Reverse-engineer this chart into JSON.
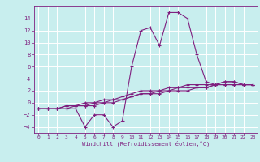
{
  "xlabel": "Windchill (Refroidissement éolien,°C)",
  "x": [
    0,
    1,
    2,
    3,
    4,
    5,
    6,
    7,
    8,
    9,
    10,
    11,
    12,
    13,
    14,
    15,
    16,
    17,
    18,
    19,
    20,
    21,
    22,
    23
  ],
  "line1": [
    -1,
    -1,
    -1,
    -1,
    -1,
    -4,
    -2,
    -2,
    -4,
    -3,
    6,
    12,
    12.5,
    9.5,
    15,
    15,
    14,
    8,
    3.5,
    3,
    3.5,
    3.5,
    3,
    3
  ],
  "line2": [
    -1,
    -1,
    -1,
    -1,
    -0.5,
    -0.5,
    -0.5,
    0,
    0,
    0.5,
    1,
    1.5,
    1.5,
    1.5,
    2,
    2,
    2,
    2.5,
    2.5,
    3,
    3,
    3,
    3,
    3
  ],
  "line3": [
    -1,
    -1,
    -1,
    -0.5,
    -0.5,
    -0.5,
    0,
    0,
    0.5,
    0.5,
    1,
    1.5,
    1.5,
    2,
    2,
    2.5,
    2.5,
    2.5,
    2.5,
    3,
    3,
    3,
    3,
    3
  ],
  "line4": [
    -1,
    -1,
    -1,
    -0.5,
    -0.5,
    0,
    0,
    0.5,
    0.5,
    1,
    1.5,
    2,
    2,
    2,
    2.5,
    2.5,
    3,
    3,
    3,
    3,
    3.5,
    3.5,
    3,
    3
  ],
  "line_color": "#7f1f7f",
  "bg_color": "#c8eeee",
  "grid_color": "#ffffff",
  "ylim": [
    -5,
    16
  ],
  "yticks": [
    -4,
    -2,
    0,
    2,
    4,
    6,
    8,
    10,
    12,
    14
  ],
  "xlim": [
    -0.5,
    23.5
  ],
  "xticks": [
    0,
    1,
    2,
    3,
    4,
    5,
    6,
    7,
    8,
    9,
    10,
    11,
    12,
    13,
    14,
    15,
    16,
    17,
    18,
    19,
    20,
    21,
    22,
    23
  ]
}
